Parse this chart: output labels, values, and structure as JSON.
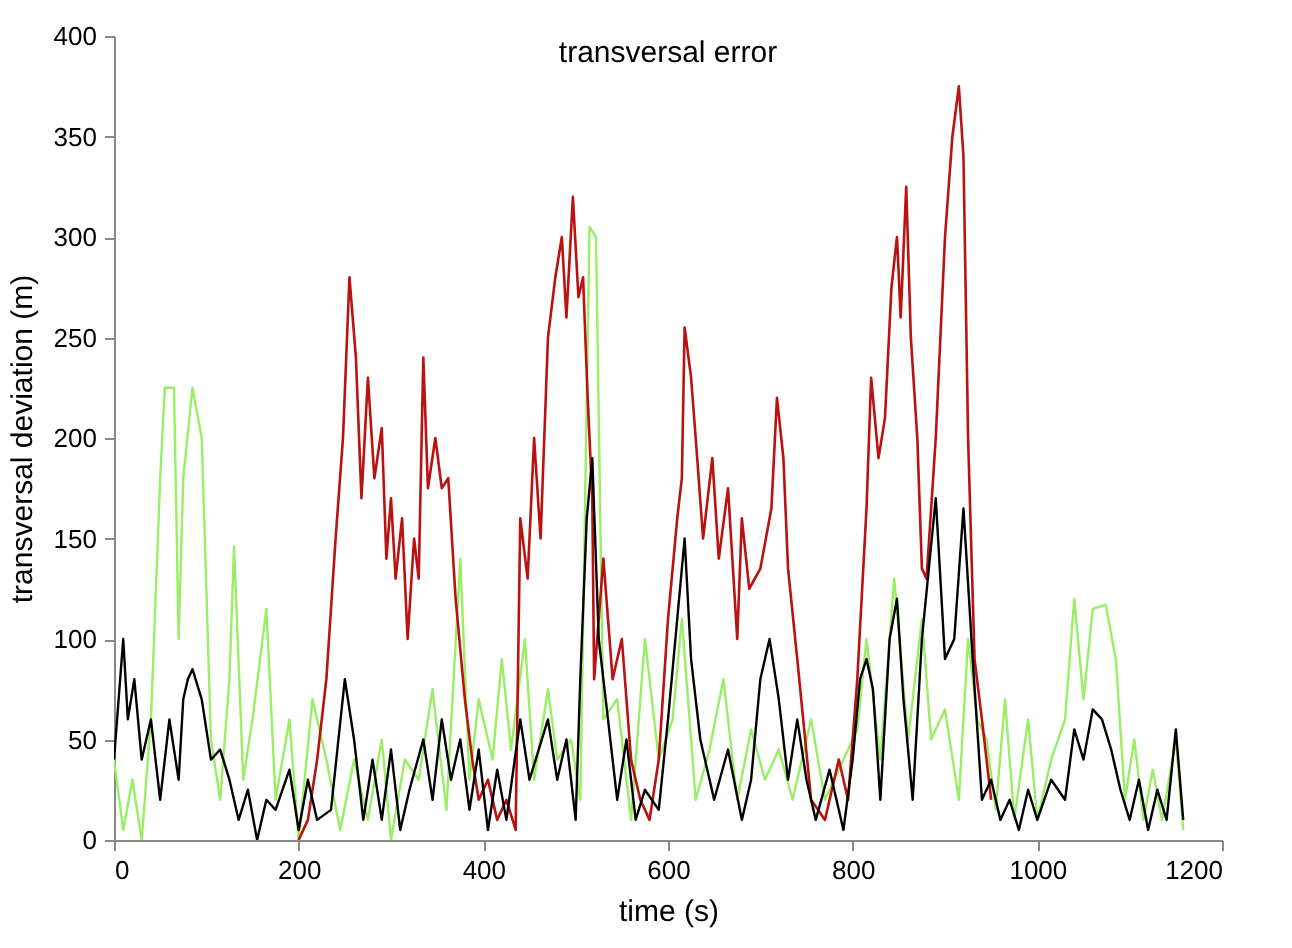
{
  "chart_data": {
    "type": "line",
    "title": "transversal error",
    "xlabel": "time (s)",
    "ylabel": "transversal deviation (m)",
    "xlim": [
      0,
      1200
    ],
    "xticks": [
      0,
      200,
      400,
      600,
      800,
      1000,
      1200
    ],
    "ylim": [
      0,
      400
    ],
    "yticks": [
      0,
      50,
      100,
      150,
      200,
      250,
      300,
      350,
      400
    ],
    "grid": false,
    "marker": "none",
    "line_style": "solid",
    "series": [
      {
        "color": "#99ee66",
        "x": [
          0,
          10,
          20,
          30,
          40,
          50,
          55,
          65,
          70,
          75,
          85,
          95,
          105,
          115,
          125,
          130,
          140,
          150,
          165,
          175,
          190,
          200,
          215,
          230,
          245,
          260,
          275,
          290,
          300,
          315,
          330,
          345,
          360,
          375,
          385,
          395,
          410,
          420,
          430,
          445,
          455,
          470,
          480,
          495,
          505,
          515,
          522,
          530,
          545,
          560,
          575,
          590,
          605,
          615,
          630,
          645,
          660,
          675,
          690,
          705,
          720,
          735,
          755,
          770,
          790,
          805,
          815,
          830,
          845,
          860,
          875,
          885,
          900,
          915,
          925,
          935,
          945,
          955,
          965,
          975,
          990,
          1000,
          1015,
          1030,
          1040,
          1050,
          1060,
          1074,
          1085,
          1095,
          1105,
          1115,
          1125,
          1135,
          1150,
          1158
        ],
        "values": [
          40,
          5,
          30,
          0,
          60,
          180,
          225,
          225,
          100,
          180,
          225,
          200,
          50,
          20,
          80,
          146,
          30,
          60,
          115,
          20,
          60,
          0,
          70,
          40,
          5,
          40,
          10,
          50,
          0,
          40,
          30,
          75,
          15,
          140,
          30,
          70,
          40,
          90,
          45,
          100,
          30,
          75,
          40,
          50,
          20,
          305,
          300,
          60,
          70,
          10,
          100,
          40,
          60,
          110,
          20,
          45,
          80,
          20,
          55,
          30,
          45,
          20,
          60,
          20,
          40,
          55,
          100,
          40,
          130,
          50,
          110,
          50,
          65,
          20,
          100,
          60,
          50,
          15,
          70,
          10,
          60,
          10,
          40,
          60,
          120,
          70,
          115,
          117,
          90,
          20,
          50,
          10,
          35,
          10,
          50,
          5
        ]
      },
      {
        "color": "#bb1111",
        "x": [
          200,
          210,
          220,
          230,
          240,
          248,
          255,
          262,
          268,
          275,
          282,
          290,
          295,
          300,
          305,
          312,
          318,
          325,
          330,
          335,
          340,
          348,
          355,
          362,
          370,
          380,
          388,
          395,
          405,
          415,
          425,
          435,
          440,
          448,
          455,
          462,
          470,
          478,
          485,
          490,
          497,
          503,
          508,
          513,
          518,
          520,
          530,
          540,
          550,
          560,
          570,
          580,
          590,
          600,
          610,
          615,
          618,
          625,
          630,
          638,
          648,
          655,
          665,
          675,
          680,
          688,
          700,
          712,
          718,
          725,
          730,
          740,
          755,
          770,
          785,
          795,
          805,
          815,
          820,
          828,
          835,
          842,
          848,
          852,
          858,
          863,
          870,
          875,
          880,
          890,
          900,
          908,
          915,
          920,
          925,
          932,
          940,
          950
        ],
        "values": [
          0,
          10,
          40,
          80,
          150,
          200,
          280,
          240,
          170,
          230,
          180,
          205,
          140,
          170,
          130,
          160,
          100,
          150,
          130,
          240,
          175,
          200,
          175,
          180,
          120,
          70,
          40,
          20,
          30,
          10,
          20,
          5,
          160,
          130,
          200,
          150,
          250,
          280,
          300,
          260,
          320,
          270,
          280,
          220,
          170,
          80,
          140,
          80,
          100,
          40,
          20,
          10,
          40,
          110,
          160,
          180,
          255,
          230,
          200,
          150,
          190,
          140,
          175,
          100,
          160,
          125,
          135,
          165,
          220,
          190,
          135,
          90,
          20,
          10,
          40,
          20,
          80,
          165,
          230,
          190,
          210,
          275,
          300,
          260,
          325,
          250,
          200,
          135,
          130,
          200,
          300,
          350,
          375,
          340,
          200,
          90,
          60,
          20
        ]
      },
      {
        "color": "#000000",
        "x": [
          0,
          5,
          10,
          15,
          22,
          30,
          40,
          50,
          60,
          70,
          75,
          80,
          85,
          95,
          105,
          115,
          125,
          135,
          145,
          155,
          165,
          175,
          190,
          200,
          210,
          220,
          235,
          250,
          260,
          270,
          280,
          290,
          300,
          310,
          320,
          335,
          345,
          355,
          365,
          375,
          385,
          395,
          405,
          415,
          425,
          440,
          450,
          460,
          470,
          480,
          490,
          500,
          505,
          512,
          518,
          525,
          535,
          545,
          555,
          565,
          575,
          590,
          600,
          610,
          618,
          625,
          635,
          650,
          665,
          680,
          690,
          700,
          710,
          720,
          730,
          740,
          750,
          760,
          775,
          790,
          800,
          808,
          815,
          822,
          830,
          840,
          848,
          855,
          865,
          875,
          890,
          900,
          910,
          920,
          930,
          940,
          950,
          960,
          970,
          980,
          990,
          1000,
          1015,
          1030,
          1040,
          1050,
          1060,
          1070,
          1080,
          1090,
          1100,
          1110,
          1120,
          1130,
          1140,
          1150,
          1158
        ],
        "values": [
          40,
          70,
          100,
          60,
          80,
          40,
          60,
          20,
          60,
          30,
          70,
          80,
          85,
          70,
          40,
          45,
          30,
          10,
          25,
          0,
          20,
          15,
          35,
          5,
          30,
          10,
          15,
          80,
          50,
          10,
          40,
          10,
          45,
          5,
          25,
          50,
          20,
          60,
          30,
          50,
          15,
          45,
          5,
          35,
          10,
          60,
          30,
          45,
          60,
          30,
          50,
          10,
          80,
          160,
          190,
          100,
          60,
          20,
          50,
          10,
          25,
          15,
          60,
          110,
          150,
          90,
          50,
          20,
          45,
          10,
          30,
          80,
          100,
          70,
          30,
          60,
          30,
          10,
          35,
          5,
          40,
          80,
          90,
          75,
          20,
          100,
          120,
          70,
          20,
          100,
          170,
          90,
          100,
          165,
          90,
          20,
          30,
          10,
          20,
          5,
          25,
          10,
          30,
          20,
          55,
          40,
          65,
          60,
          45,
          25,
          10,
          30,
          5,
          25,
          10,
          55,
          10
        ]
      }
    ]
  }
}
